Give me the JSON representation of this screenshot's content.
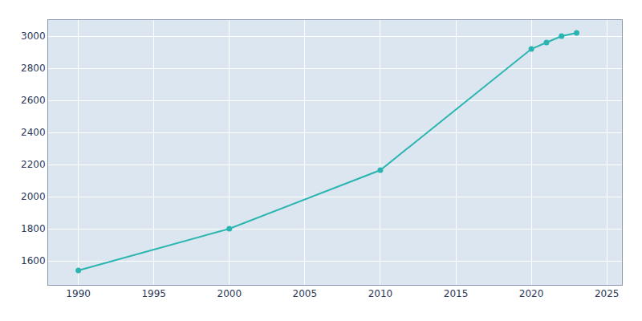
{
  "chart_data": {
    "type": "line",
    "x": [
      1990,
      2000,
      2010,
      2020,
      2021,
      2022,
      2023
    ],
    "values": [
      1540,
      1800,
      2165,
      2920,
      2960,
      3000,
      3020
    ],
    "color": "#2ab5b0",
    "marker": "circle",
    "xlim": [
      1988,
      2026
    ],
    "ylim": [
      1450,
      3100
    ],
    "xticks": [
      1990,
      1995,
      2000,
      2005,
      2010,
      2015,
      2020,
      2025
    ],
    "yticks": [
      1600,
      1800,
      2000,
      2200,
      2400,
      2600,
      2800,
      3000
    ],
    "grid": true
  }
}
